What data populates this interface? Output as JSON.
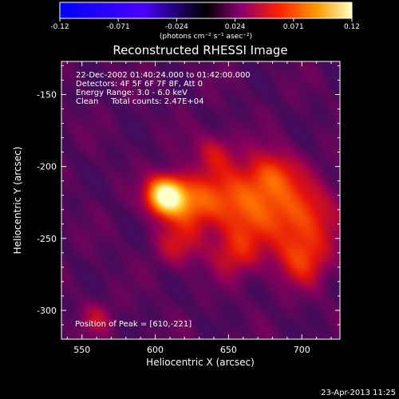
{
  "colorbar": {
    "ticks": [
      "-0.12",
      "-0.071",
      "-0.024",
      "0.024",
      "0.071",
      "0.12"
    ],
    "unit_label": "(photons cm⁻² s⁻¹ asec⁻²)",
    "vmin": -0.12,
    "vmax": 0.12
  },
  "title": "Reconstructed RHESSI Image",
  "info": {
    "line1": "22-Dec-2002 01:40:24.000 to 01:42:00.000",
    "line2": "Detectors: 4F 5F 6F 7F 8F, Att 0",
    "line3": "Energy Range: 3.0 - 6.0 keV",
    "line4": "Clean     Total counts: 2.47E+04"
  },
  "peak_label": "Position of Peak = [610,-221]",
  "footer_timestamp": "23-Apr-2013 11:25",
  "chart_data": {
    "type": "heatmap",
    "xlabel": "Heliocentric X (arcsec)",
    "ylabel": "Heliocentric Y (arcsec)",
    "xlim": [
      536,
      726
    ],
    "ylim": [
      -320,
      -127
    ],
    "x_ticks": [
      550,
      600,
      650,
      700
    ],
    "y_ticks": [
      -150,
      -200,
      -250,
      -300
    ],
    "peak": [
      610,
      -221
    ],
    "sources": [
      {
        "x": 607,
        "y": -220,
        "amp": 0.12,
        "sigma": 9
      },
      {
        "x": 625,
        "y": -225,
        "amp": 0.05,
        "sigma": 13
      },
      {
        "x": 660,
        "y": -225,
        "amp": 0.055,
        "sigma": 18
      },
      {
        "x": 700,
        "y": -235,
        "amp": 0.05,
        "sigma": 17
      },
      {
        "x": 680,
        "y": -205,
        "amp": 0.04,
        "sigma": 12
      },
      {
        "x": 655,
        "y": -260,
        "amp": 0.035,
        "sigma": 12
      },
      {
        "x": 700,
        "y": -265,
        "amp": 0.04,
        "sigma": 13
      },
      {
        "x": 615,
        "y": -255,
        "amp": 0.03,
        "sigma": 11
      },
      {
        "x": 640,
        "y": -190,
        "amp": 0.03,
        "sigma": 10
      },
      {
        "x": 560,
        "y": -305,
        "amp": 0.025,
        "sigma": 8
      }
    ]
  }
}
